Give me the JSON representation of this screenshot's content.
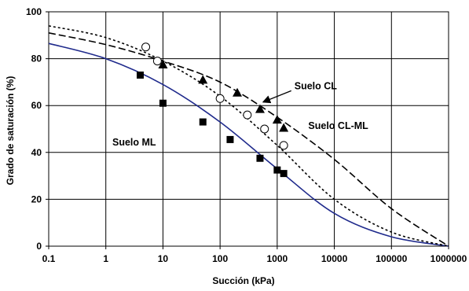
{
  "chart_data": {
    "type": "scatter",
    "title": "",
    "xlabel": "Succión (kPa)",
    "ylabel": "Grado de saturación (%)",
    "x_scale": "log",
    "xlim": [
      0.1,
      1000000
    ],
    "ylim": [
      0,
      100
    ],
    "x_ticks": [
      0.1,
      1,
      10,
      100,
      1000,
      10000,
      100000,
      1000000
    ],
    "x_tick_labels": [
      "0.1",
      "1",
      "10",
      "100",
      "1000",
      "10000",
      "100000",
      "1000000"
    ],
    "y_ticks": [
      0,
      20,
      40,
      60,
      80,
      100
    ],
    "y_tick_labels": [
      "0",
      "20",
      "40",
      "60",
      "80",
      "100"
    ],
    "grid": true,
    "legend": "none",
    "series": [
      {
        "marker": "square",
        "line": "none",
        "color": "#000000",
        "x": [
          4,
          10,
          50,
          150,
          500,
          1000,
          1300
        ],
        "y": [
          73,
          61,
          53,
          45.5,
          37.5,
          32.5,
          31
        ]
      },
      {
        "marker": "open-circle",
        "line": "none",
        "color": "#000000",
        "x": [
          5,
          8,
          100,
          300,
          600,
          1300
        ],
        "y": [
          85,
          79,
          63,
          56,
          50,
          43
        ]
      },
      {
        "marker": "triangle",
        "line": "none",
        "color": "#000000",
        "x": [
          10,
          50,
          200,
          500,
          1000,
          1300
        ],
        "y": [
          77.5,
          71,
          65.5,
          58.5,
          54,
          50.5
        ]
      },
      {
        "marker": "none",
        "line": "solid",
        "color": "#1f2a8c",
        "x": [
          0.1,
          1,
          10,
          100,
          1000,
          10000,
          100000,
          1000000
        ],
        "y": [
          86.5,
          80,
          69,
          53,
          33,
          14,
          4,
          0
        ]
      },
      {
        "marker": "none",
        "line": "dotted",
        "color": "#000000",
        "x": [
          0.1,
          1,
          10,
          100,
          1000,
          10000,
          100000,
          1000000
        ],
        "y": [
          94,
          89,
          79,
          64,
          43,
          20,
          6,
          0
        ]
      },
      {
        "marker": "none",
        "line": "dashed",
        "color": "#000000",
        "x": [
          0.1,
          1,
          10,
          100,
          1000,
          10000,
          100000,
          1000000
        ],
        "y": [
          91,
          86,
          79,
          70,
          55,
          37,
          16,
          0
        ]
      }
    ],
    "annotations": [
      {
        "text": "Suelo CL",
        "x": 2000,
        "y": 67,
        "arrow_to": [
          500,
          60.5
        ]
      },
      {
        "text": "Suelo CL-ML",
        "x": 3500,
        "y": 50,
        "arrow_to": null
      },
      {
        "text": "Suelo ML",
        "x": 1.3,
        "y": 43,
        "arrow_to": null
      }
    ]
  }
}
